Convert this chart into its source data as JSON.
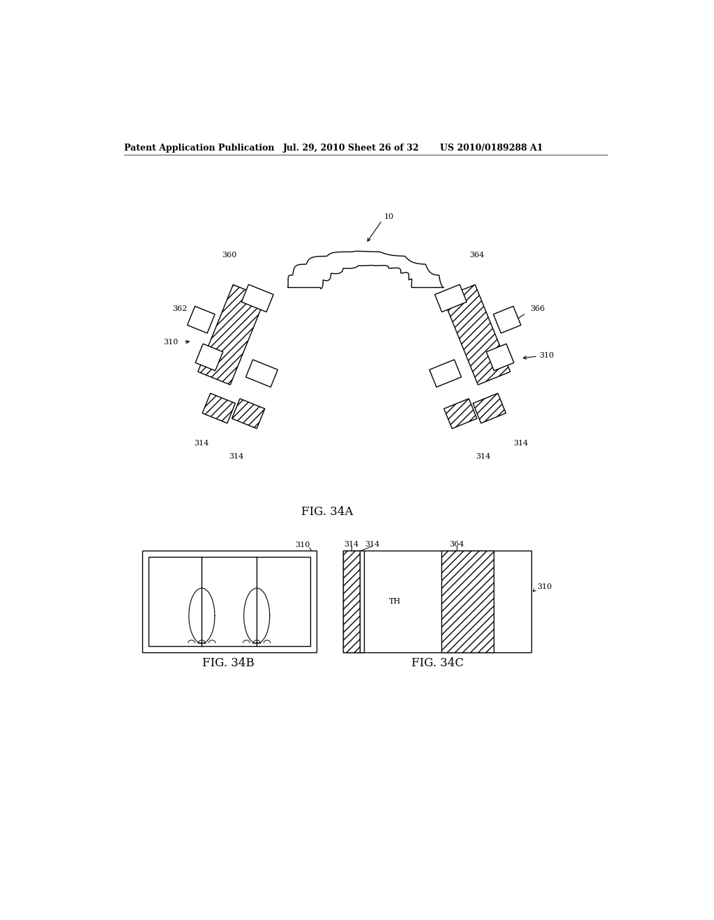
{
  "bg_color": "#ffffff",
  "header_text": "Patent Application Publication",
  "header_date": "Jul. 29, 2010",
  "header_sheet": "Sheet 26 of 32",
  "header_patent": "US 2010/0189288 A1",
  "fig34a_label": "FIG. 34A",
  "fig34b_label": "FIG. 34B",
  "fig34c_label": "FIG. 34C",
  "line_color": "#000000",
  "font_size_header": 9,
  "font_size_label": 8,
  "font_size_fig": 12
}
